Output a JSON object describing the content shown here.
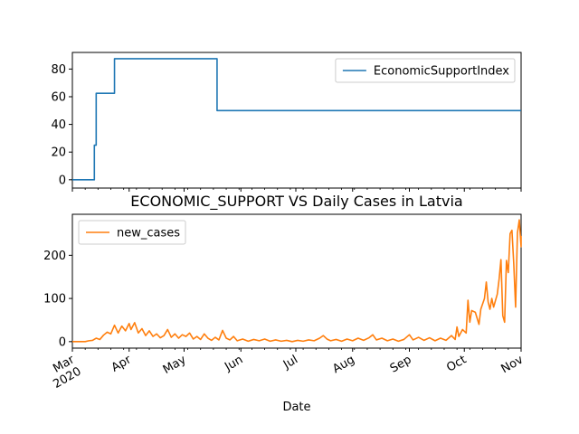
{
  "title": "ECONOMIC_SUPPORT VS Daily Cases in Latvia",
  "xlabel": "Date",
  "x_ticks": [
    "Mar\n2020",
    "Apr",
    "May",
    "Jun",
    "Jul",
    "Aug",
    "Sep",
    "Oct",
    "Nov"
  ],
  "chart_data": [
    {
      "type": "line",
      "x_range": [
        "2020-03-01",
        "2020-11-01"
      ],
      "ylim": [
        -6,
        92
      ],
      "y_ticks": [
        0,
        20,
        40,
        60,
        80
      ],
      "legend_position": "top-right",
      "grid": false,
      "series": [
        {
          "name": "EconomicSupportIndex",
          "color": "#1f77b4",
          "points": [
            [
              "2020-03-01",
              0
            ],
            [
              "2020-03-13",
              0
            ],
            [
              "2020-03-13",
              25
            ],
            [
              "2020-03-14",
              25
            ],
            [
              "2020-03-14",
              62.5
            ],
            [
              "2020-03-24",
              62.5
            ],
            [
              "2020-03-24",
              87.5
            ],
            [
              "2020-05-19",
              87.5
            ],
            [
              "2020-05-19",
              50
            ],
            [
              "2020-11-01",
              50
            ]
          ]
        }
      ]
    },
    {
      "type": "line",
      "x_range": [
        "2020-03-01",
        "2020-11-01"
      ],
      "ylim": [
        -15,
        295
      ],
      "y_ticks": [
        0,
        100,
        200
      ],
      "legend_position": "top-left",
      "grid": false,
      "series": [
        {
          "name": "new_cases",
          "color": "#ff7f0e",
          "points": [
            [
              "2020-03-01",
              0
            ],
            [
              "2020-03-08",
              0
            ],
            [
              "2020-03-10",
              2
            ],
            [
              "2020-03-12",
              3
            ],
            [
              "2020-03-14",
              8
            ],
            [
              "2020-03-16",
              5
            ],
            [
              "2020-03-18",
              15
            ],
            [
              "2020-03-20",
              22
            ],
            [
              "2020-03-22",
              18
            ],
            [
              "2020-03-24",
              38
            ],
            [
              "2020-03-26",
              20
            ],
            [
              "2020-03-28",
              36
            ],
            [
              "2020-03-30",
              25
            ],
            [
              "2020-04-01",
              42
            ],
            [
              "2020-04-02",
              28
            ],
            [
              "2020-04-04",
              44
            ],
            [
              "2020-04-06",
              20
            ],
            [
              "2020-04-08",
              30
            ],
            [
              "2020-04-10",
              14
            ],
            [
              "2020-04-12",
              25
            ],
            [
              "2020-04-14",
              12
            ],
            [
              "2020-04-16",
              18
            ],
            [
              "2020-04-18",
              9
            ],
            [
              "2020-04-20",
              14
            ],
            [
              "2020-04-22",
              28
            ],
            [
              "2020-04-24",
              10
            ],
            [
              "2020-04-26",
              18
            ],
            [
              "2020-04-28",
              8
            ],
            [
              "2020-04-30",
              16
            ],
            [
              "2020-05-02",
              12
            ],
            [
              "2020-05-04",
              20
            ],
            [
              "2020-05-06",
              6
            ],
            [
              "2020-05-08",
              12
            ],
            [
              "2020-05-10",
              5
            ],
            [
              "2020-05-12",
              18
            ],
            [
              "2020-05-14",
              8
            ],
            [
              "2020-05-16",
              3
            ],
            [
              "2020-05-18",
              10
            ],
            [
              "2020-05-20",
              4
            ],
            [
              "2020-05-22",
              26
            ],
            [
              "2020-05-24",
              8
            ],
            [
              "2020-05-26",
              4
            ],
            [
              "2020-05-28",
              12
            ],
            [
              "2020-05-30",
              2
            ],
            [
              "2020-06-02",
              6
            ],
            [
              "2020-06-05",
              1
            ],
            [
              "2020-06-08",
              5
            ],
            [
              "2020-06-11",
              2
            ],
            [
              "2020-06-14",
              6
            ],
            [
              "2020-06-17",
              1
            ],
            [
              "2020-06-20",
              4
            ],
            [
              "2020-06-23",
              1
            ],
            [
              "2020-06-26",
              3
            ],
            [
              "2020-06-29",
              0
            ],
            [
              "2020-07-02",
              3
            ],
            [
              "2020-07-05",
              1
            ],
            [
              "2020-07-08",
              4
            ],
            [
              "2020-07-11",
              2
            ],
            [
              "2020-07-14",
              8
            ],
            [
              "2020-07-16",
              14
            ],
            [
              "2020-07-18",
              6
            ],
            [
              "2020-07-20",
              2
            ],
            [
              "2020-07-23",
              5
            ],
            [
              "2020-07-26",
              1
            ],
            [
              "2020-07-29",
              6
            ],
            [
              "2020-08-01",
              2
            ],
            [
              "2020-08-04",
              8
            ],
            [
              "2020-08-07",
              3
            ],
            [
              "2020-08-10",
              9
            ],
            [
              "2020-08-12",
              16
            ],
            [
              "2020-08-14",
              4
            ],
            [
              "2020-08-17",
              8
            ],
            [
              "2020-08-20",
              2
            ],
            [
              "2020-08-23",
              6
            ],
            [
              "2020-08-26",
              1
            ],
            [
              "2020-08-29",
              5
            ],
            [
              "2020-09-01",
              16
            ],
            [
              "2020-09-03",
              4
            ],
            [
              "2020-09-06",
              10
            ],
            [
              "2020-09-09",
              3
            ],
            [
              "2020-09-12",
              9
            ],
            [
              "2020-09-15",
              2
            ],
            [
              "2020-09-18",
              8
            ],
            [
              "2020-09-21",
              3
            ],
            [
              "2020-09-24",
              14
            ],
            [
              "2020-09-26",
              5
            ],
            [
              "2020-09-27",
              34
            ],
            [
              "2020-09-28",
              12
            ],
            [
              "2020-09-30",
              28
            ],
            [
              "2020-10-02",
              20
            ],
            [
              "2020-10-03",
              96
            ],
            [
              "2020-10-04",
              45
            ],
            [
              "2020-10-05",
              72
            ],
            [
              "2020-10-07",
              68
            ],
            [
              "2020-10-09",
              40
            ],
            [
              "2020-10-10",
              75
            ],
            [
              "2020-10-12",
              100
            ],
            [
              "2020-10-13",
              138
            ],
            [
              "2020-10-14",
              92
            ],
            [
              "2020-10-15",
              75
            ],
            [
              "2020-10-16",
              100
            ],
            [
              "2020-10-17",
              80
            ],
            [
              "2020-10-19",
              110
            ],
            [
              "2020-10-20",
              145
            ],
            [
              "2020-10-21",
              190
            ],
            [
              "2020-10-22",
              60
            ],
            [
              "2020-10-23",
              45
            ],
            [
              "2020-10-24",
              188
            ],
            [
              "2020-10-25",
              160
            ],
            [
              "2020-10-26",
              250
            ],
            [
              "2020-10-27",
              258
            ],
            [
              "2020-10-28",
              180
            ],
            [
              "2020-10-29",
              80
            ],
            [
              "2020-10-30",
              252
            ],
            [
              "2020-10-31",
              282
            ],
            [
              "2020-11-01",
              220
            ],
            [
              "2020-11-02",
              245
            ]
          ]
        }
      ]
    }
  ]
}
